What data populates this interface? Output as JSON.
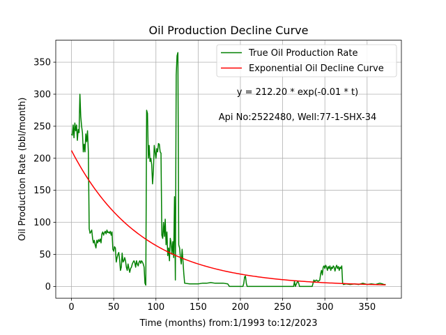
{
  "chart_data": {
    "type": "line",
    "title": "Oil Production Decline Curve",
    "xlabel": "Time (months) from:1/1993 to:12/2023",
    "ylabel": "Oil Production Rate (bbl/month)",
    "xlim": [
      -18.6,
      390.6
    ],
    "ylim": [
      -18.3,
      384.3
    ],
    "x_ticks": [
      0,
      50,
      100,
      150,
      200,
      250,
      300,
      350
    ],
    "y_ticks": [
      0,
      50,
      100,
      150,
      200,
      250,
      300,
      350
    ],
    "grid": true,
    "legend": "top-right",
    "annotations": [
      "y = 212.20 * exp(-0.01 * t)",
      "Api No:2522480, Well:77-1-SHX-34"
    ],
    "series": [
      {
        "name": "True Oil Production Rate",
        "color": "#008000",
        "points": [
          [
            0,
            238
          ],
          [
            1,
            236
          ],
          [
            2,
            252
          ],
          [
            3,
            232
          ],
          [
            4,
            255
          ],
          [
            5,
            243
          ],
          [
            6,
            252
          ],
          [
            7,
            228
          ],
          [
            8,
            245
          ],
          [
            9,
            240
          ],
          [
            10,
            300
          ],
          [
            11,
            265
          ],
          [
            12,
            250
          ],
          [
            13,
            240
          ],
          [
            14,
            210
          ],
          [
            15,
            222
          ],
          [
            16,
            210
          ],
          [
            17,
            238
          ],
          [
            18,
            226
          ],
          [
            19,
            243
          ],
          [
            20,
            210
          ],
          [
            21,
            90
          ],
          [
            22,
            83
          ],
          [
            23,
            85
          ],
          [
            24,
            88
          ],
          [
            25,
            75
          ],
          [
            26,
            68
          ],
          [
            27,
            72
          ],
          [
            28,
            65
          ],
          [
            29,
            60
          ],
          [
            30,
            72
          ],
          [
            31,
            68
          ],
          [
            32,
            73
          ],
          [
            33,
            70
          ],
          [
            34,
            74
          ],
          [
            35,
            68
          ],
          [
            36,
            82
          ],
          [
            37,
            85
          ],
          [
            38,
            80
          ],
          [
            39,
            84
          ],
          [
            40,
            86
          ],
          [
            41,
            82
          ],
          [
            42,
            88
          ],
          [
            43,
            84
          ],
          [
            44,
            85
          ],
          [
            45,
            83
          ],
          [
            46,
            86
          ],
          [
            47,
            80
          ],
          [
            48,
            85
          ],
          [
            49,
            58
          ],
          [
            50,
            55
          ],
          [
            51,
            62
          ],
          [
            52,
            60
          ],
          [
            53,
            38
          ],
          [
            54,
            45
          ],
          [
            55,
            50
          ],
          [
            56,
            53
          ],
          [
            57,
            42
          ],
          [
            58,
            25
          ],
          [
            59,
            30
          ],
          [
            60,
            52
          ],
          [
            61,
            38
          ],
          [
            62,
            40
          ],
          [
            63,
            45
          ],
          [
            64,
            40
          ],
          [
            65,
            30
          ],
          [
            66,
            25
          ],
          [
            67,
            35
          ],
          [
            68,
            28
          ],
          [
            69,
            22
          ],
          [
            70,
            28
          ],
          [
            71,
            30
          ],
          [
            72,
            35
          ],
          [
            73,
            38
          ],
          [
            74,
            40
          ],
          [
            75,
            37
          ],
          [
            76,
            30
          ],
          [
            77,
            40
          ],
          [
            78,
            35
          ],
          [
            79,
            32
          ],
          [
            80,
            38
          ],
          [
            81,
            40
          ],
          [
            82,
            36
          ],
          [
            83,
            40
          ],
          [
            84,
            38
          ],
          [
            85,
            35
          ],
          [
            86,
            30
          ],
          [
            87,
            5
          ],
          [
            88,
            2
          ],
          [
            89,
            275
          ],
          [
            90,
            270
          ],
          [
            91,
            200
          ],
          [
            92,
            220
          ],
          [
            93,
            195
          ],
          [
            94,
            200
          ],
          [
            95,
            190
          ],
          [
            96,
            160
          ],
          [
            97,
            180
          ],
          [
            98,
            220
          ],
          [
            99,
            210
          ],
          [
            100,
            200
          ],
          [
            101,
            215
          ],
          [
            102,
            210
          ],
          [
            103,
            223
          ],
          [
            104,
            222
          ],
          [
            105,
            210
          ],
          [
            106,
            208
          ],
          [
            107,
            80
          ],
          [
            108,
            75
          ],
          [
            109,
            100
          ],
          [
            110,
            78
          ],
          [
            111,
            105
          ],
          [
            112,
            65
          ],
          [
            113,
            85
          ],
          [
            114,
            48
          ],
          [
            115,
            60
          ],
          [
            116,
            40
          ],
          [
            117,
            75
          ],
          [
            118,
            68
          ],
          [
            119,
            50
          ],
          [
            120,
            70
          ],
          [
            121,
            45
          ],
          [
            122,
            140
          ],
          [
            123,
            10
          ],
          [
            124,
            330
          ],
          [
            125,
            360
          ],
          [
            126,
            365
          ],
          [
            127,
            65
          ],
          [
            128,
            60
          ],
          [
            129,
            45
          ],
          [
            130,
            35
          ],
          [
            131,
            58
          ],
          [
            132,
            40
          ],
          [
            133,
            20
          ],
          [
            134,
            5
          ],
          [
            140,
            4
          ],
          [
            150,
            4
          ],
          [
            155,
            5
          ],
          [
            160,
            5
          ],
          [
            165,
            6
          ],
          [
            170,
            5
          ],
          [
            175,
            5
          ],
          [
            180,
            5
          ],
          [
            185,
            4
          ],
          [
            187,
            0
          ],
          [
            190,
            0
          ],
          [
            200,
            0
          ],
          [
            203,
            0
          ],
          [
            204,
            5
          ],
          [
            205,
            15
          ],
          [
            206,
            16
          ],
          [
            207,
            5
          ],
          [
            208,
            0
          ],
          [
            215,
            0
          ],
          [
            225,
            0
          ],
          [
            235,
            0
          ],
          [
            245,
            0
          ],
          [
            255,
            0
          ],
          [
            263,
            0
          ],
          [
            264,
            8
          ],
          [
            265,
            0
          ],
          [
            267,
            6
          ],
          [
            268,
            8
          ],
          [
            269,
            5
          ],
          [
            270,
            0
          ],
          [
            275,
            0
          ],
          [
            280,
            0
          ],
          [
            285,
            0
          ],
          [
            286,
            5
          ],
          [
            287,
            10
          ],
          [
            288,
            8
          ],
          [
            290,
            10
          ],
          [
            292,
            8
          ],
          [
            294,
            10
          ],
          [
            295,
            20
          ],
          [
            296,
            25
          ],
          [
            297,
            18
          ],
          [
            298,
            30
          ],
          [
            299,
            32
          ],
          [
            300,
            28
          ],
          [
            301,
            33
          ],
          [
            302,
            30
          ],
          [
            303,
            25
          ],
          [
            304,
            31
          ],
          [
            305,
            28
          ],
          [
            306,
            32
          ],
          [
            307,
            25
          ],
          [
            308,
            30
          ],
          [
            309,
            28
          ],
          [
            310,
            32
          ],
          [
            311,
            30
          ],
          [
            312,
            24
          ],
          [
            313,
            30
          ],
          [
            314,
            33
          ],
          [
            315,
            28
          ],
          [
            316,
            31
          ],
          [
            317,
            25
          ],
          [
            318,
            30
          ],
          [
            319,
            28
          ],
          [
            320,
            32
          ],
          [
            321,
            5
          ],
          [
            322,
            3
          ],
          [
            325,
            4
          ],
          [
            330,
            3
          ],
          [
            335,
            4
          ],
          [
            340,
            3
          ],
          [
            345,
            5
          ],
          [
            350,
            3
          ],
          [
            355,
            4
          ],
          [
            360,
            3
          ],
          [
            365,
            5
          ],
          [
            368,
            4
          ],
          [
            370,
            3
          ],
          [
            372,
            3
          ]
        ]
      },
      {
        "name": "Exponential Oil Decline Curve",
        "color": "#ff0000",
        "equation": {
          "a": 212.2,
          "b": 0.012
        },
        "x_range": [
          0,
          372
        ]
      }
    ]
  }
}
